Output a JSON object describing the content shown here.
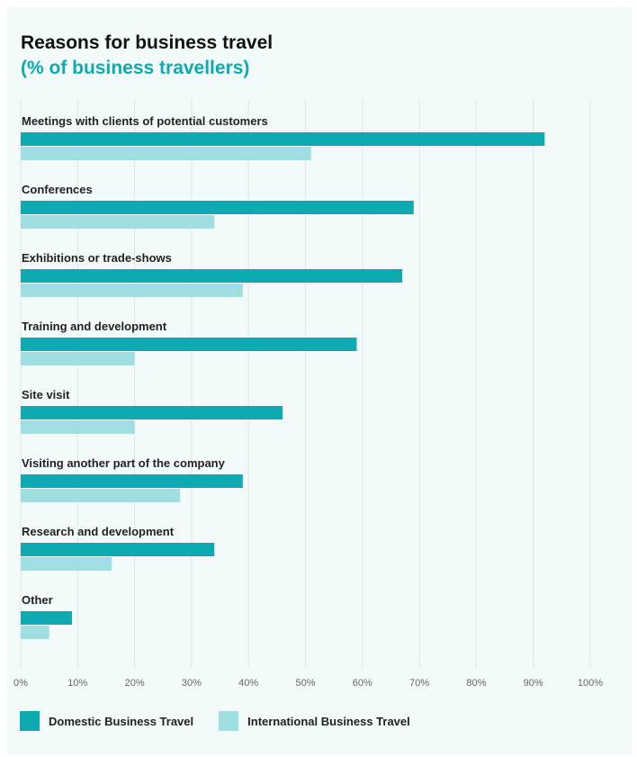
{
  "chart_data": {
    "type": "bar",
    "orientation": "horizontal",
    "title": "Reasons for business travel",
    "subtitle": "(% of business travellers)",
    "categories": [
      "Meetings with clients of potential customers",
      "Conferences",
      "Exhibitions or trade-shows",
      "Training and development",
      "Site visit",
      "Visiting another part of the company",
      "Research and development",
      "Other"
    ],
    "series": [
      {
        "name": "Domestic Business Travel",
        "color": "#0eaab2",
        "values": [
          92,
          69,
          67,
          59,
          46,
          39,
          34,
          9
        ]
      },
      {
        "name": "International Business Travel",
        "color": "#9fdfe2",
        "values": [
          51,
          34,
          39,
          20,
          20,
          28,
          16,
          5
        ]
      }
    ],
    "xlim": [
      0,
      100
    ],
    "xticks": [
      "0%",
      "10%",
      "20%",
      "30%",
      "40%",
      "50%",
      "60%",
      "70%",
      "80%",
      "90%",
      "100%"
    ],
    "grid": true,
    "legend_position": "bottom"
  }
}
